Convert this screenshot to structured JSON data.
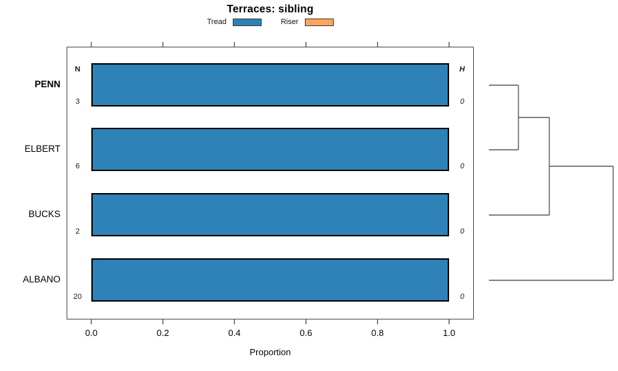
{
  "chart_data": {
    "type": "bar",
    "orientation": "horizontal",
    "title": "Terraces: sibling",
    "xlabel": "Proportion",
    "xlim": [
      0,
      1
    ],
    "x_tick_values": [
      0,
      0.2,
      0.4,
      0.6,
      0.8,
      1.0
    ],
    "x_tick_labels": [
      "0.0",
      "0.2",
      "0.4",
      "0.6",
      "0.8",
      "1.0"
    ],
    "grid": false,
    "legend_position": "top",
    "categories": [
      "PENN",
      "ELBERT",
      "BUCKS",
      "ALBANO"
    ],
    "emphasized_category": "PENN",
    "series": [
      {
        "name": "Tread",
        "color": "#2E82B8",
        "values": [
          1.0,
          1.0,
          1.0,
          1.0
        ]
      },
      {
        "name": "Riser",
        "color": "#FBA65C",
        "values": [
          0.0,
          0.0,
          0.0,
          0.0
        ]
      }
    ],
    "left_column": {
      "header": "N",
      "values": [
        "3",
        "6",
        "2",
        "20"
      ]
    },
    "right_column": {
      "header": "H",
      "values": [
        "0",
        "0",
        "0",
        "0"
      ]
    },
    "dendrogram": {
      "tree": [
        [
          [
            "PENN",
            "ELBERT"
          ],
          "BUCKS"
        ],
        "ALBANO"
      ]
    }
  },
  "colors": {
    "bar_border": "#000000",
    "frame": "#4a4a4a",
    "dendrogram_line": "#5c5c5c"
  }
}
